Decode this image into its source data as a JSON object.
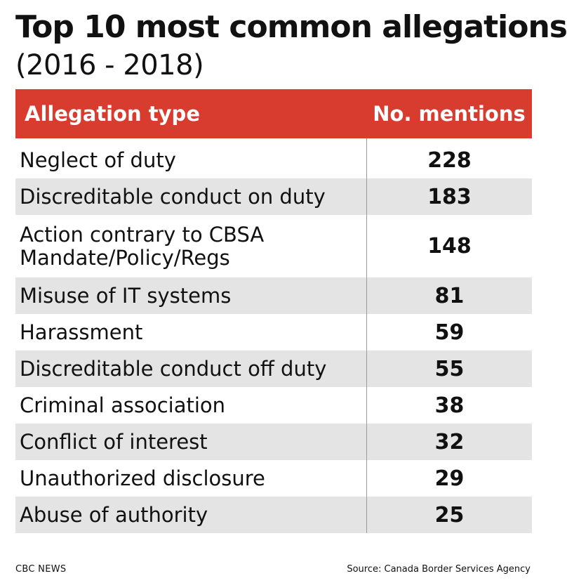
{
  "chart_data": {
    "type": "table",
    "title": "Top 10 most common allegations",
    "subtitle": "(2016 - 2018)",
    "columns": [
      "Allegation type",
      "No. mentions"
    ],
    "categories": [
      "Neglect of duty",
      "Discreditable conduct on duty",
      "Action contrary to CBSA\nMandate/Policy/Regs",
      "Misuse of IT systems",
      "Harassment",
      "Discreditable conduct off duty",
      "Criminal association",
      "Conflict of interest",
      "Unauthorized disclosure",
      "Abuse of authority"
    ],
    "values": [
      228,
      183,
      148,
      81,
      59,
      55,
      38,
      32,
      29,
      25
    ]
  },
  "colors": {
    "header_bg": "#d83c2f",
    "header_text": "#ffffff",
    "row_shade": "#e4e4e4",
    "text": "#111111"
  },
  "footer": {
    "brand": "CBC NEWS",
    "source": "Source:  Canada Border Services Agency"
  }
}
